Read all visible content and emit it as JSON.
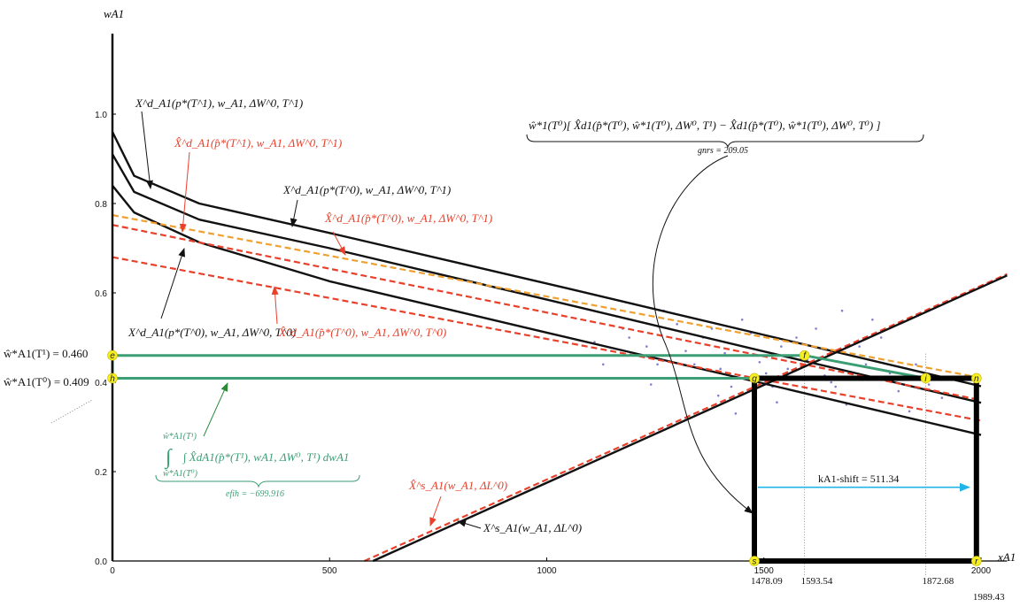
{
  "chart_data": {
    "type": "line",
    "xlabel": "xA1",
    "ylabel": "wA1",
    "xlim": [
      0,
      2060
    ],
    "ylim": [
      0,
      1.18
    ],
    "x_ticks": [
      0,
      500,
      1000,
      1500,
      2000
    ],
    "y_ticks": [
      0.0,
      0.2,
      0.4,
      0.6,
      0.8,
      1.0
    ],
    "x_tick_labels": [
      "0",
      "500",
      "1000",
      "1500",
      "2000"
    ],
    "y_tick_labels": [
      "0.0",
      "0.2",
      "0.4",
      "0.6",
      "0.8",
      "1.0"
    ],
    "colors": {
      "black": "#111111",
      "red": "#e8402a",
      "orange": "#f0a030",
      "green": "#3c9e74",
      "blue": "#20b4e8",
      "scatter": "#8080d0",
      "point_fill": "#f5ee20"
    },
    "series": [
      {
        "name": "X^d_A1(p*(T^1), w_A1, ΔW^0, T^1)",
        "style": "black-solid",
        "x": [
          0,
          50,
          200,
          500,
          1000,
          1500,
          2000
        ],
        "y": [
          0.96,
          0.862,
          0.8,
          0.734,
          0.621,
          0.506,
          0.391
        ]
      },
      {
        "name": "X^d_A1(p*(T^0), w_A1, ΔW^0, T^1)",
        "style": "black-solid",
        "x": [
          0,
          50,
          200,
          500,
          1000,
          1500,
          2000
        ],
        "y": [
          0.91,
          0.826,
          0.764,
          0.7,
          0.585,
          0.469,
          0.354
        ]
      },
      {
        "name": "X^d_A1(p*(T^0), w_A1, ΔW^0, T^0)",
        "style": "black-solid",
        "x": [
          0,
          50,
          200,
          500,
          1000,
          1500,
          2000
        ],
        "y": [
          0.84,
          0.78,
          0.713,
          0.626,
          0.511,
          0.397,
          0.282
        ]
      },
      {
        "name": "X̂^d_A1(p̂*(T^1), w_A1, ΔW^0, T^1)",
        "style": "orange-dashed",
        "x": [
          0,
          2000
        ],
        "y": [
          0.774,
          0.41
        ]
      },
      {
        "name": "X̂^d_A1(p̂*(T^0), w_A1, ΔW^0, T^1)",
        "style": "red-dashed",
        "x": [
          0,
          2000
        ],
        "y": [
          0.752,
          0.36
        ]
      },
      {
        "name": "X̂^d_A1(p̂*(T^0), w_A1, ΔW^0, T^0)",
        "style": "red-dashed",
        "x": [
          0,
          2000
        ],
        "y": [
          0.68,
          0.314
        ]
      },
      {
        "name": "X̂^s_A1(w_A1, ΔL^0)",
        "style": "red-dashed",
        "x": [
          580,
          2060
        ],
        "y": [
          0.0,
          0.642
        ]
      },
      {
        "name": "X^s_A1(w_A1, ΔL^0)",
        "style": "black-solid",
        "x": [
          600,
          2060
        ],
        "y": [
          0.0,
          0.639
        ]
      }
    ],
    "scatter": [
      [
        1110,
        0.49
      ],
      [
        1130,
        0.44
      ],
      [
        1175,
        0.52
      ],
      [
        1190,
        0.5
      ],
      [
        1210,
        0.46
      ],
      [
        1230,
        0.48
      ],
      [
        1240,
        0.395
      ],
      [
        1255,
        0.44
      ],
      [
        1270,
        0.56
      ],
      [
        1300,
        0.53
      ],
      [
        1320,
        0.47
      ],
      [
        1340,
        0.44
      ],
      [
        1360,
        0.5
      ],
      [
        1380,
        0.52
      ],
      [
        1395,
        0.37
      ],
      [
        1400,
        0.43
      ],
      [
        1410,
        0.465
      ],
      [
        1425,
        0.39
      ],
      [
        1435,
        0.33
      ],
      [
        1450,
        0.54
      ],
      [
        1470,
        0.51
      ],
      [
        1490,
        0.445
      ],
      [
        1505,
        0.42
      ],
      [
        1520,
        0.39
      ],
      [
        1530,
        0.355
      ],
      [
        1540,
        0.48
      ],
      [
        1555,
        0.43
      ],
      [
        1575,
        0.5
      ],
      [
        1600,
        0.45
      ],
      [
        1620,
        0.52
      ],
      [
        1640,
        0.415
      ],
      [
        1655,
        0.4
      ],
      [
        1665,
        0.39
      ],
      [
        1680,
        0.56
      ],
      [
        1690,
        0.35
      ],
      [
        1700,
        0.41
      ],
      [
        1720,
        0.48
      ],
      [
        1735,
        0.44
      ],
      [
        1750,
        0.54
      ],
      [
        1770,
        0.5
      ],
      [
        1790,
        0.42
      ],
      [
        1810,
        0.38
      ],
      [
        1835,
        0.335
      ],
      [
        1850,
        0.44
      ],
      [
        1880,
        0.395
      ],
      [
        1910,
        0.365
      ]
    ],
    "points": [
      {
        "label": "e",
        "x": 0,
        "y": 0.46
      },
      {
        "label": "h",
        "x": 0,
        "y": 0.409
      },
      {
        "label": "f",
        "x": 1593.54,
        "y": 0.46
      },
      {
        "label": "g",
        "x": 1478.09,
        "y": 0.409
      },
      {
        "label": "i",
        "x": 1872.68,
        "y": 0.409
      },
      {
        "label": "n",
        "x": 1989.43,
        "y": 0.409
      },
      {
        "label": "s",
        "x": 1478.09,
        "y": 0.0
      },
      {
        "label": "r",
        "x": 1989.43,
        "y": 0.0
      }
    ],
    "rectangle_vertices": [
      "g",
      "n",
      "r",
      "s"
    ],
    "green_polygon": [
      "e",
      "f",
      "i",
      "g",
      "h"
    ],
    "shift_arrow": {
      "x_from": 1478.09,
      "x_to": 1989.43,
      "y": 0.165,
      "label": "kA1-shift = 511.34",
      "value": 511.34
    },
    "vertical_ref_lines": [
      1593.54,
      1872.68
    ],
    "x_annotations": [
      {
        "value": 1478.09,
        "text": "1478.09"
      },
      {
        "value": 1593.54,
        "text": "1593.54"
      },
      {
        "value": 1872.68,
        "text": "1872.68"
      },
      {
        "value": 1989.43,
        "text": "1989.43"
      }
    ],
    "y_annotations": [
      {
        "value": 0.46,
        "text": "ŵ*A1(T¹) = 0.460"
      },
      {
        "value": 0.409,
        "text": "ŵ*A1(T⁰) = 0.409"
      }
    ],
    "gnrs": {
      "expression": "ŵ*1(T⁰)[ X̂d1(p̂*(T⁰), ŵ*1(T⁰), ΔW⁰, T¹) − X̂d1(p̂*(T⁰), ŵ*1(T⁰), ΔW⁰, T⁰) ]",
      "label": "gnrs = 209.05",
      "value": 209.05
    },
    "efih": {
      "expression": "∫ X̂dA1(p̂*(T¹), wA1, ΔW⁰, T¹) dwA1",
      "upper_limit": "ŵ*A1(T¹)",
      "lower_limit": "ŵ*A1(T⁰)",
      "label": "efih = −699.916",
      "value": -699.916
    }
  }
}
